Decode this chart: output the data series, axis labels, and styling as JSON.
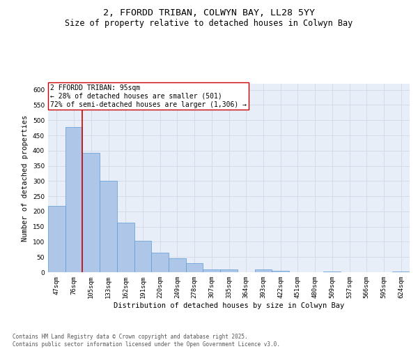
{
  "title_line1": "2, FFORDD TRIBAN, COLWYN BAY, LL28 5YY",
  "title_line2": "Size of property relative to detached houses in Colwyn Bay",
  "xlabel": "Distribution of detached houses by size in Colwyn Bay",
  "ylabel": "Number of detached properties",
  "categories": [
    "47sqm",
    "76sqm",
    "105sqm",
    "133sqm",
    "162sqm",
    "191sqm",
    "220sqm",
    "249sqm",
    "278sqm",
    "307sqm",
    "335sqm",
    "364sqm",
    "393sqm",
    "422sqm",
    "451sqm",
    "480sqm",
    "509sqm",
    "537sqm",
    "566sqm",
    "595sqm",
    "624sqm"
  ],
  "values": [
    218,
    478,
    393,
    301,
    162,
    104,
    65,
    46,
    30,
    10,
    9,
    0,
    9,
    4,
    0,
    0,
    2,
    0,
    0,
    0,
    3
  ],
  "bar_color": "#aec6e8",
  "bar_edge_color": "#5b9bd5",
  "vline_x": 1.5,
  "vline_color": "#cc0000",
  "annotation_text": "2 FFORDD TRIBAN: 95sqm\n← 28% of detached houses are smaller (501)\n72% of semi-detached houses are larger (1,306) →",
  "annotation_box_color": "#ffffff",
  "annotation_box_edge": "#cc0000",
  "ylim": [
    0,
    620
  ],
  "yticks": [
    0,
    50,
    100,
    150,
    200,
    250,
    300,
    350,
    400,
    450,
    500,
    550,
    600
  ],
  "grid_color": "#d0d8e8",
  "bg_color": "#e8eef8",
  "footnote": "Contains HM Land Registry data © Crown copyright and database right 2025.\nContains public sector information licensed under the Open Government Licence v3.0.",
  "title_fontsize": 9.5,
  "subtitle_fontsize": 8.5,
  "label_fontsize": 7.5,
  "tick_fontsize": 6.5,
  "annot_fontsize": 7,
  "footnote_fontsize": 5.5
}
